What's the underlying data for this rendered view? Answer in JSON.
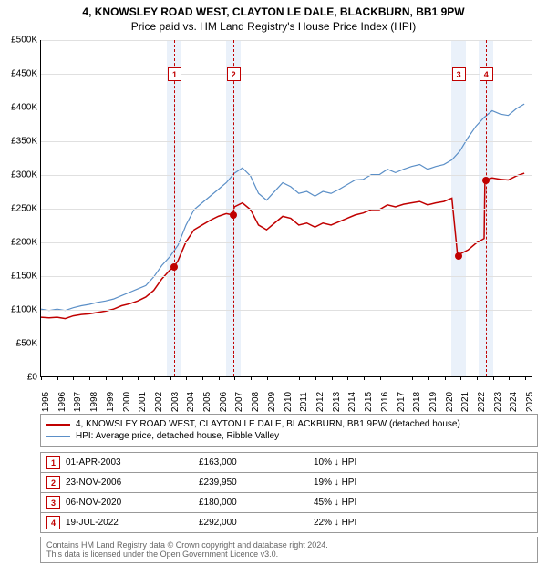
{
  "title": {
    "line1": "4, KNOWSLEY ROAD WEST, CLAYTON LE DALE, BLACKBURN, BB1 9PW",
    "line2": "Price paid vs. HM Land Registry's House Price Index (HPI)"
  },
  "chart": {
    "type": "line",
    "x": {
      "min": 1995,
      "max": 2025.5,
      "ticks": [
        1995,
        1996,
        1997,
        1998,
        1999,
        2000,
        2001,
        2002,
        2003,
        2004,
        2005,
        2006,
        2007,
        2008,
        2009,
        2010,
        2011,
        2012,
        2013,
        2014,
        2015,
        2016,
        2017,
        2018,
        2019,
        2020,
        2021,
        2022,
        2023,
        2024,
        2025
      ]
    },
    "y": {
      "min": 0,
      "max": 500000,
      "tick_step": 50000,
      "tick_prefix": "£",
      "tick_suffix": "K"
    },
    "background_color": "#ffffff",
    "grid_color": "#e0e0e0",
    "events": [
      {
        "n": 1,
        "date": "01-APR-2003",
        "x": 2003.25,
        "price_label": "£163,000",
        "price": 163000,
        "diff": "10% ↓ HPI"
      },
      {
        "n": 2,
        "date": "23-NOV-2006",
        "x": 2006.9,
        "price_label": "£239,950",
        "price": 239950,
        "diff": "19% ↓ HPI"
      },
      {
        "n": 3,
        "date": "06-NOV-2020",
        "x": 2020.85,
        "price_label": "£180,000",
        "price": 180000,
        "diff": "45% ↓ HPI"
      },
      {
        "n": 4,
        "date": "19-JUL-2022",
        "x": 2022.55,
        "price_label": "£292,000",
        "price": 292000,
        "diff": "22% ↓ HPI"
      }
    ],
    "event_band_color": "#eaf1fa",
    "event_line_color": "#c00000",
    "series": [
      {
        "name": "4, KNOWSLEY ROAD WEST, CLAYTON LE DALE, BLACKBURN, BB1 9PW (detached house)",
        "color": "#c00000",
        "width": 1.5,
        "data": [
          [
            1995,
            88000
          ],
          [
            1995.5,
            87000
          ],
          [
            1996,
            88000
          ],
          [
            1996.5,
            86000
          ],
          [
            1997,
            90000
          ],
          [
            1997.5,
            92000
          ],
          [
            1998,
            93000
          ],
          [
            1998.5,
            95000
          ],
          [
            1999,
            97000
          ],
          [
            1999.5,
            100000
          ],
          [
            2000,
            105000
          ],
          [
            2000.5,
            108000
          ],
          [
            2001,
            112000
          ],
          [
            2001.5,
            118000
          ],
          [
            2002,
            128000
          ],
          [
            2002.5,
            145000
          ],
          [
            2003,
            158000
          ],
          [
            2003.25,
            163000
          ],
          [
            2003.5,
            172000
          ],
          [
            2004,
            200000
          ],
          [
            2004.5,
            218000
          ],
          [
            2005,
            225000
          ],
          [
            2005.5,
            232000
          ],
          [
            2006,
            238000
          ],
          [
            2006.5,
            242000
          ],
          [
            2006.9,
            239950
          ],
          [
            2007,
            252000
          ],
          [
            2007.5,
            258000
          ],
          [
            2008,
            248000
          ],
          [
            2008.5,
            225000
          ],
          [
            2009,
            218000
          ],
          [
            2009.5,
            228000
          ],
          [
            2010,
            238000
          ],
          [
            2010.5,
            235000
          ],
          [
            2011,
            225000
          ],
          [
            2011.5,
            228000
          ],
          [
            2012,
            222000
          ],
          [
            2012.5,
            228000
          ],
          [
            2013,
            225000
          ],
          [
            2013.5,
            230000
          ],
          [
            2014,
            235000
          ],
          [
            2014.5,
            240000
          ],
          [
            2015,
            243000
          ],
          [
            2015.5,
            248000
          ],
          [
            2016,
            248000
          ],
          [
            2016.5,
            255000
          ],
          [
            2017,
            252000
          ],
          [
            2017.5,
            256000
          ],
          [
            2018,
            258000
          ],
          [
            2018.5,
            260000
          ],
          [
            2019,
            255000
          ],
          [
            2019.5,
            258000
          ],
          [
            2020,
            260000
          ],
          [
            2020.5,
            265000
          ],
          [
            2020.85,
            180000
          ],
          [
            2021,
            182000
          ],
          [
            2021.5,
            188000
          ],
          [
            2022,
            198000
          ],
          [
            2022.5,
            205000
          ],
          [
            2022.55,
            292000
          ],
          [
            2023,
            295000
          ],
          [
            2023.5,
            293000
          ],
          [
            2024,
            292000
          ],
          [
            2024.5,
            298000
          ],
          [
            2025,
            302000
          ]
        ]
      },
      {
        "name": "HPI: Average price, detached house, Ribble Valley",
        "color": "#5b8fc7",
        "width": 1.2,
        "data": [
          [
            1995,
            100000
          ],
          [
            1995.5,
            98000
          ],
          [
            1996,
            100000
          ],
          [
            1996.5,
            98000
          ],
          [
            1997,
            102000
          ],
          [
            1997.5,
            105000
          ],
          [
            1998,
            107000
          ],
          [
            1998.5,
            110000
          ],
          [
            1999,
            112000
          ],
          [
            1999.5,
            115000
          ],
          [
            2000,
            120000
          ],
          [
            2000.5,
            125000
          ],
          [
            2001,
            130000
          ],
          [
            2001.5,
            135000
          ],
          [
            2002,
            148000
          ],
          [
            2002.5,
            165000
          ],
          [
            2003,
            178000
          ],
          [
            2003.5,
            195000
          ],
          [
            2004,
            225000
          ],
          [
            2004.5,
            248000
          ],
          [
            2005,
            258000
          ],
          [
            2005.5,
            268000
          ],
          [
            2006,
            278000
          ],
          [
            2006.5,
            288000
          ],
          [
            2007,
            302000
          ],
          [
            2007.5,
            310000
          ],
          [
            2008,
            298000
          ],
          [
            2008.5,
            272000
          ],
          [
            2009,
            262000
          ],
          [
            2009.5,
            275000
          ],
          [
            2010,
            288000
          ],
          [
            2010.5,
            282000
          ],
          [
            2011,
            272000
          ],
          [
            2011.5,
            275000
          ],
          [
            2012,
            268000
          ],
          [
            2012.5,
            275000
          ],
          [
            2013,
            272000
          ],
          [
            2013.5,
            278000
          ],
          [
            2014,
            285000
          ],
          [
            2014.5,
            292000
          ],
          [
            2015,
            293000
          ],
          [
            2015.5,
            300000
          ],
          [
            2016,
            300000
          ],
          [
            2016.5,
            308000
          ],
          [
            2017,
            303000
          ],
          [
            2017.5,
            308000
          ],
          [
            2018,
            312000
          ],
          [
            2018.5,
            315000
          ],
          [
            2019,
            308000
          ],
          [
            2019.5,
            312000
          ],
          [
            2020,
            315000
          ],
          [
            2020.5,
            322000
          ],
          [
            2021,
            335000
          ],
          [
            2021.5,
            355000
          ],
          [
            2022,
            372000
          ],
          [
            2022.5,
            385000
          ],
          [
            2023,
            395000
          ],
          [
            2023.5,
            390000
          ],
          [
            2024,
            388000
          ],
          [
            2024.5,
            398000
          ],
          [
            2025,
            405000
          ]
        ]
      }
    ]
  },
  "legend": {
    "title": ""
  },
  "footer": {
    "line1": "Contains HM Land Registry data © Crown copyright and database right 2024.",
    "line2": "This data is licensed under the Open Government Licence v3.0."
  }
}
